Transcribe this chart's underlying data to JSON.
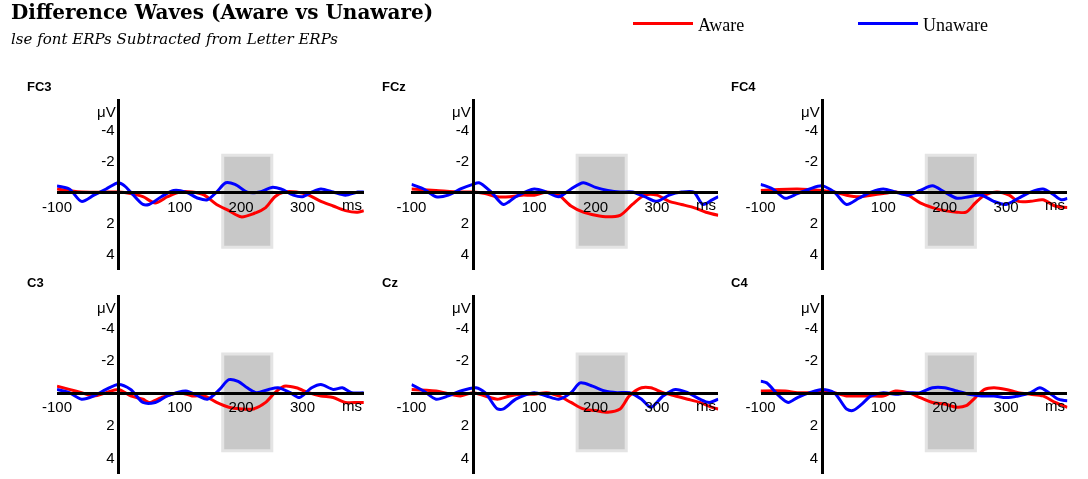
{
  "chart_data": [
    {
      "type": "line",
      "title": "FC3",
      "xlabel": "ms",
      "ylabel": "μV",
      "xlim": [
        -100,
        400
      ],
      "ylim": [
        5,
        -6
      ],
      "xticks": [
        -100,
        100,
        200,
        300
      ],
      "yticks": [
        -4,
        -2,
        2,
        4
      ],
      "legend": "top right",
      "bands": [
        {
          "axis": "x",
          "from": 170,
          "to": 250,
          "color": "#c8c8c8"
        }
      ],
      "annotations": [
        "Difference Waves (Aware vs Unaware)",
        "lse font ERPs Subtracted from Letter ERPs"
      ],
      "series": [
        {
          "name": "Aware",
          "color": "#ff0000",
          "x": [
            -100,
            -60,
            -20,
            0,
            20,
            40,
            60,
            80,
            100,
            120,
            140,
            160,
            180,
            200,
            220,
            240,
            255,
            270,
            290,
            310,
            330,
            350,
            370,
            390,
            400
          ],
          "values": [
            -0.2,
            0,
            0,
            0,
            0.1,
            0.3,
            0.7,
            0.3,
            0,
            0,
            0.2,
            0.8,
            1.2,
            1.6,
            1.4,
            1.0,
            0.3,
            0,
            0,
            0.2,
            0.6,
            0.9,
            1.2,
            1.3,
            1.2
          ]
        },
        {
          "name": "Unaware",
          "color": "#0000ff",
          "x": [
            -100,
            -80,
            -60,
            -40,
            -20,
            0,
            10,
            20,
            40,
            50,
            70,
            90,
            110,
            130,
            145,
            160,
            175,
            190,
            210,
            230,
            250,
            265,
            285,
            300,
            315,
            330,
            350,
            370,
            390,
            400
          ],
          "values": [
            -0.4,
            -0.2,
            0.6,
            0.2,
            -0.2,
            -0.6,
            -0.4,
            0,
            0.8,
            0.8,
            0.3,
            -0.1,
            0,
            0.4,
            0.5,
            0,
            -0.6,
            -0.5,
            0,
            0,
            -0.3,
            -0.2,
            0.2,
            0.3,
            0,
            -0.2,
            0,
            0.2,
            0,
            0
          ]
        }
      ]
    },
    {
      "type": "line",
      "title": "FCz",
      "xlabel": "ms",
      "ylabel": "μV",
      "xlim": [
        -100,
        400
      ],
      "ylim": [
        5,
        -6
      ],
      "xticks": [
        -100,
        100,
        200,
        300
      ],
      "yticks": [
        -4,
        -2,
        2,
        4
      ],
      "bands": [
        {
          "axis": "x",
          "from": 170,
          "to": 250,
          "color": "#c8c8c8"
        }
      ],
      "series": [
        {
          "color": "#ff0000",
          "x": [
            -100,
            -60,
            -20,
            0,
            20,
            40,
            60,
            80,
            100,
            120,
            140,
            160,
            180,
            200,
            220,
            240,
            260,
            280,
            300,
            320,
            340,
            360,
            380,
            400
          ],
          "values": [
            -0.2,
            -0.1,
            0,
            0,
            0.1,
            0.3,
            0.3,
            0.2,
            0.2,
            0,
            0.2,
            0.9,
            1.3,
            1.5,
            1.6,
            1.5,
            0.8,
            0.2,
            0.2,
            0.6,
            0.8,
            1.0,
            1.3,
            1.5
          ]
        },
        {
          "color": "#0000ff",
          "x": [
            -100,
            -80,
            -60,
            -40,
            -20,
            0,
            10,
            30,
            50,
            70,
            100,
            120,
            140,
            160,
            180,
            200,
            220,
            240,
            260,
            280,
            300,
            320,
            340,
            360,
            375,
            390,
            400
          ],
          "values": [
            -0.5,
            -0.2,
            0.3,
            0.2,
            -0.2,
            -0.5,
            -0.6,
            0,
            0.8,
            0.3,
            -0.2,
            0,
            0.3,
            -0.2,
            -0.6,
            -0.3,
            -0.1,
            0,
            0,
            0.3,
            0.6,
            0.2,
            0,
            0,
            0.8,
            0.5,
            0.3
          ]
        }
      ]
    },
    {
      "type": "line",
      "title": "FC4",
      "xlabel": "ms",
      "ylabel": "μV",
      "xlim": [
        -100,
        400
      ],
      "ylim": [
        5,
        -6
      ],
      "xticks": [
        -100,
        100,
        200,
        300
      ],
      "yticks": [
        -4,
        -2,
        2,
        4
      ],
      "bands": [
        {
          "axis": "x",
          "from": 170,
          "to": 250,
          "color": "#c8c8c8"
        }
      ],
      "series": [
        {
          "color": "#ff0000",
          "x": [
            -100,
            -40,
            0,
            20,
            40,
            60,
            80,
            100,
            120,
            140,
            160,
            180,
            200,
            220,
            235,
            250,
            265,
            285,
            305,
            320,
            340,
            360,
            380,
            400
          ],
          "values": [
            -0.1,
            -0.2,
            -0.1,
            0,
            0.2,
            0.3,
            0.2,
            0.1,
            0,
            0.2,
            0.7,
            1.0,
            1.2,
            1.3,
            1.3,
            0.7,
            0.2,
            0,
            0.2,
            0.6,
            0.6,
            0.5,
            0.9,
            1.0
          ]
        },
        {
          "color": "#0000ff",
          "x": [
            -100,
            -80,
            -60,
            -40,
            -20,
            0,
            20,
            40,
            60,
            80,
            100,
            120,
            140,
            160,
            180,
            200,
            220,
            240,
            260,
            280,
            300,
            320,
            340,
            360,
            375,
            390,
            400
          ],
          "values": [
            -0.5,
            -0.2,
            0.4,
            0.1,
            -0.2,
            -0.4,
            0,
            0.8,
            0.4,
            0,
            -0.2,
            0,
            0.2,
            -0.1,
            -0.4,
            0,
            0.4,
            0.3,
            0.2,
            0.6,
            0.8,
            0.4,
            0,
            -0.2,
            0.1,
            0.5,
            0.4
          ]
        }
      ]
    },
    {
      "type": "line",
      "title": "C3",
      "xlabel": "ms",
      "ylabel": "μV",
      "xlim": [
        -100,
        400
      ],
      "ylim": [
        5,
        -6
      ],
      "xticks": [
        -100,
        100,
        200,
        300
      ],
      "yticks": [
        -4,
        -2,
        2,
        4
      ],
      "bands": [
        {
          "axis": "x",
          "from": 170,
          "to": 250,
          "color": "#c8c8c8"
        }
      ],
      "series": [
        {
          "color": "#ff0000",
          "x": [
            -100,
            -80,
            -60,
            -40,
            -20,
            0,
            20,
            40,
            50,
            70,
            100,
            120,
            140,
            160,
            180,
            200,
            220,
            240,
            255,
            270,
            290,
            310,
            330,
            350,
            370,
            390,
            400
          ],
          "values": [
            -0.4,
            -0.2,
            0,
            0.2,
            0,
            -0.2,
            0.2,
            0.4,
            0.6,
            0.3,
            0,
            0.2,
            0.2,
            0.6,
            0.9,
            1.0,
            1.0,
            0.6,
            0,
            -0.4,
            -0.3,
            0,
            0.2,
            0.3,
            0.6,
            0.6,
            0.6
          ]
        },
        {
          "color": "#0000ff",
          "x": [
            -100,
            -80,
            -60,
            -40,
            -20,
            0,
            20,
            40,
            60,
            80,
            110,
            130,
            145,
            165,
            180,
            195,
            210,
            225,
            245,
            260,
            280,
            295,
            315,
            330,
            350,
            365,
            380,
            400
          ],
          "values": [
            -0.2,
            0,
            0.4,
            0.2,
            -0.2,
            -0.5,
            -0.2,
            0.6,
            0.6,
            0.2,
            -0.1,
            0.2,
            0.4,
            -0.2,
            -0.8,
            -0.7,
            -0.3,
            0,
            -0.2,
            -0.3,
            0,
            0.3,
            -0.3,
            -0.5,
            -0.2,
            -0.3,
            0,
            0
          ]
        }
      ]
    },
    {
      "type": "line",
      "title": "Cz",
      "xlabel": "ms",
      "ylabel": "μV",
      "xlim": [
        -100,
        400
      ],
      "ylim": [
        5,
        -6
      ],
      "xticks": [
        -100,
        100,
        200,
        300
      ],
      "yticks": [
        -4,
        -2,
        2,
        4
      ],
      "bands": [
        {
          "axis": "x",
          "from": 170,
          "to": 250,
          "color": "#c8c8c8"
        }
      ],
      "series": [
        {
          "color": "#ff0000",
          "x": [
            -100,
            -60,
            -20,
            0,
            20,
            40,
            60,
            80,
            100,
            120,
            140,
            160,
            180,
            200,
            220,
            240,
            255,
            275,
            290,
            310,
            330,
            350,
            370,
            390,
            400
          ],
          "values": [
            -0.2,
            -0.1,
            0.2,
            0,
            0.2,
            0.4,
            0.2,
            0.1,
            0.1,
            0,
            0.2,
            0.6,
            1.0,
            1.1,
            1.2,
            1.0,
            0.2,
            -0.3,
            -0.3,
            0,
            0.2,
            0.4,
            0.6,
            0.9,
            1.0
          ]
        },
        {
          "color": "#0000ff",
          "x": [
            -100,
            -80,
            -60,
            -40,
            -20,
            5,
            20,
            40,
            50,
            70,
            100,
            120,
            140,
            160,
            175,
            195,
            215,
            235,
            255,
            275,
            290,
            310,
            330,
            350,
            370,
            385,
            400
          ],
          "values": [
            -0.5,
            -0.1,
            0.4,
            0.2,
            -0.1,
            -0.3,
            0,
            1.0,
            1.0,
            0.4,
            0,
            0.2,
            0.4,
            0,
            -0.6,
            -0.4,
            -0.1,
            0,
            0,
            0.4,
            0.9,
            0.2,
            -0.2,
            0,
            0.4,
            0.6,
            0.4
          ]
        }
      ]
    },
    {
      "type": "line",
      "title": "C4",
      "xlabel": "ms",
      "ylabel": "μV",
      "xlim": [
        -100,
        400
      ],
      "ylim": [
        5,
        -6
      ],
      "xticks": [
        -100,
        100,
        200,
        300
      ],
      "yticks": [
        -4,
        -2,
        2,
        4
      ],
      "bands": [
        {
          "axis": "x",
          "from": 170,
          "to": 250,
          "color": "#c8c8c8"
        }
      ],
      "series": [
        {
          "color": "#ff0000",
          "x": [
            -100,
            -60,
            -40,
            -20,
            0,
            20,
            40,
            60,
            80,
            100,
            120,
            140,
            160,
            180,
            200,
            220,
            235,
            250,
            265,
            280,
            300,
            320,
            340,
            360,
            380,
            400
          ],
          "values": [
            -0.1,
            -0.1,
            0,
            0,
            -0.1,
            0,
            0.2,
            0.2,
            0.2,
            0.2,
            -0.1,
            0,
            0.3,
            0.6,
            0.7,
            0.9,
            0.8,
            0.3,
            -0.2,
            -0.3,
            -0.2,
            0,
            0.1,
            0.2,
            0.6,
            0.9
          ]
        },
        {
          "color": "#0000ff",
          "x": [
            -100,
            -90,
            -70,
            -55,
            -40,
            -20,
            0,
            20,
            40,
            50,
            65,
            80,
            100,
            120,
            140,
            160,
            180,
            200,
            220,
            240,
            260,
            280,
            300,
            320,
            340,
            355,
            370,
            385,
            400
          ],
          "values": [
            -0.7,
            -0.6,
            0.2,
            0.6,
            0.3,
            0,
            -0.2,
            0,
            1.0,
            1.1,
            0.7,
            0.2,
            0,
            0.1,
            0,
            0,
            -0.3,
            -0.3,
            -0.1,
            0.1,
            0.2,
            0.2,
            0.3,
            0.2,
            0,
            -0.3,
            0,
            0.4,
            0.5
          ]
        }
      ]
    }
  ]
}
